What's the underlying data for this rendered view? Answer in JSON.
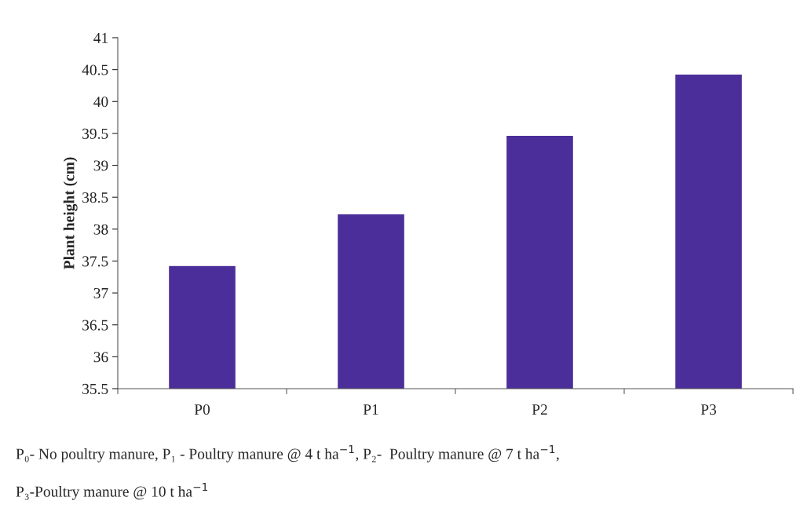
{
  "chart_data": {
    "type": "bar",
    "ylabel": "Plant height (cm)",
    "categories": [
      "P0",
      "P1",
      "P2",
      "P3"
    ],
    "values": [
      37.43,
      38.24,
      39.47,
      40.43
    ],
    "color": "#4b2e9a",
    "ylim": [
      35.5,
      41
    ],
    "yticks": [
      35.5,
      36,
      36.5,
      37,
      37.5,
      38,
      38.5,
      39,
      39.5,
      40,
      40.5,
      41
    ],
    "grid": false,
    "annotations": [
      "P₀- No poultry manure, P₁ - Poultry manure @ 4 t ha$^{−1}$, P₂-  Poultry manure @ 7 t ha$^{−1}$,",
      "P₃-Poultry manure @ 10 t ha$^{−1}$"
    ]
  }
}
